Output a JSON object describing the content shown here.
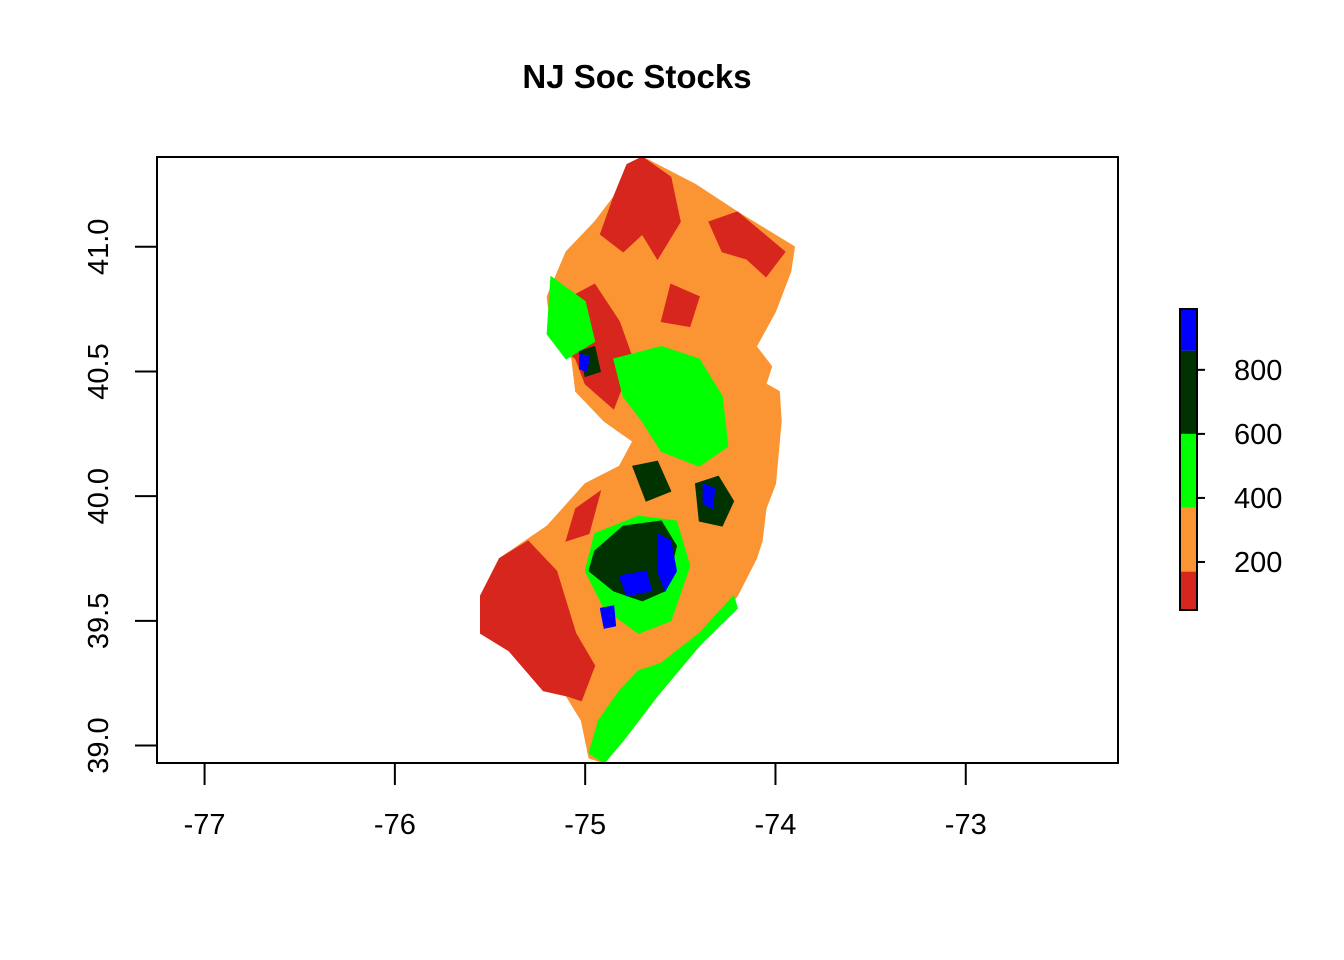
{
  "title": "NJ Soc Stocks",
  "chart_data": {
    "type": "heatmap",
    "title": "NJ Soc Stocks",
    "xlabel": "",
    "ylabel": "",
    "xlim": [
      -77.25,
      -72.2
    ],
    "ylim": [
      38.93,
      41.36
    ],
    "x_ticks": [
      "-77",
      "-76",
      "-75",
      "-74",
      "-73"
    ],
    "y_ticks": [
      "39.0",
      "39.5",
      "40.0",
      "40.5",
      "41.0"
    ],
    "legend": {
      "placement": "right",
      "range": [
        50,
        990
      ],
      "ticks": [
        "200",
        "400",
        "600",
        "800"
      ],
      "bins": [
        {
          "from": 50,
          "to": 170,
          "color": "#d7261e"
        },
        {
          "from": 170,
          "to": 370,
          "color": "#fb9433"
        },
        {
          "from": 370,
          "to": 600,
          "color": "#00ff00"
        },
        {
          "from": 600,
          "to": 860,
          "color": "#003300"
        },
        {
          "from": 860,
          "to": 990,
          "color": "#0000ff"
        }
      ]
    },
    "region_outline": [
      [
        -74.7,
        41.36
      ],
      [
        -74.42,
        41.25
      ],
      [
        -74.2,
        41.14
      ],
      [
        -73.9,
        41.0
      ],
      [
        -73.92,
        40.9
      ],
      [
        -74.0,
        40.74
      ],
      [
        -74.1,
        40.6
      ],
      [
        -74.02,
        40.52
      ],
      [
        -74.05,
        40.45
      ],
      [
        -73.98,
        40.42
      ],
      [
        -73.97,
        40.3
      ],
      [
        -74.0,
        40.05
      ],
      [
        -74.05,
        39.95
      ],
      [
        -74.07,
        39.82
      ],
      [
        -74.1,
        39.75
      ],
      [
        -74.2,
        39.6
      ],
      [
        -74.4,
        39.4
      ],
      [
        -74.62,
        39.2
      ],
      [
        -74.8,
        39.02
      ],
      [
        -74.9,
        38.93
      ],
      [
        -74.98,
        38.95
      ],
      [
        -75.02,
        39.1
      ],
      [
        -75.1,
        39.2
      ],
      [
        -75.22,
        39.22
      ],
      [
        -75.4,
        39.38
      ],
      [
        -75.55,
        39.45
      ],
      [
        -75.55,
        39.6
      ],
      [
        -75.45,
        39.75
      ],
      [
        -75.2,
        39.88
      ],
      [
        -75.0,
        40.05
      ],
      [
        -74.82,
        40.12
      ],
      [
        -74.75,
        40.22
      ],
      [
        -74.9,
        40.3
      ],
      [
        -75.05,
        40.42
      ],
      [
        -75.07,
        40.55
      ],
      [
        -75.18,
        40.68
      ],
      [
        -75.2,
        40.8
      ],
      [
        -75.1,
        40.98
      ],
      [
        -74.95,
        41.1
      ],
      [
        -74.85,
        41.2
      ],
      [
        -74.78,
        41.33
      ]
    ],
    "regions": [
      {
        "class": "200",
        "color": "#fb9433",
        "points": [
          [
            -74.7,
            41.36
          ],
          [
            -74.42,
            41.25
          ],
          [
            -74.2,
            41.14
          ],
          [
            -73.9,
            41.0
          ],
          [
            -73.92,
            40.9
          ],
          [
            -74.0,
            40.74
          ],
          [
            -74.1,
            40.6
          ],
          [
            -74.02,
            40.52
          ],
          [
            -74.05,
            40.45
          ],
          [
            -73.98,
            40.42
          ],
          [
            -73.97,
            40.3
          ],
          [
            -74.0,
            40.05
          ],
          [
            -74.05,
            39.95
          ],
          [
            -74.07,
            39.82
          ],
          [
            -74.1,
            39.75
          ],
          [
            -74.2,
            39.6
          ],
          [
            -74.4,
            39.4
          ],
          [
            -74.62,
            39.2
          ],
          [
            -74.8,
            39.02
          ],
          [
            -74.9,
            38.93
          ],
          [
            -74.98,
            38.95
          ],
          [
            -75.02,
            39.1
          ],
          [
            -75.1,
            39.2
          ],
          [
            -75.22,
            39.22
          ],
          [
            -75.4,
            39.38
          ],
          [
            -75.55,
            39.45
          ],
          [
            -75.55,
            39.6
          ],
          [
            -75.45,
            39.75
          ],
          [
            -75.2,
            39.88
          ],
          [
            -75.0,
            40.05
          ],
          [
            -74.82,
            40.12
          ],
          [
            -74.75,
            40.22
          ],
          [
            -74.9,
            40.3
          ],
          [
            -75.05,
            40.42
          ],
          [
            -75.07,
            40.55
          ],
          [
            -75.18,
            40.68
          ],
          [
            -75.2,
            40.8
          ],
          [
            -75.1,
            40.98
          ],
          [
            -74.95,
            41.1
          ],
          [
            -74.85,
            41.2
          ],
          [
            -74.78,
            41.33
          ]
        ]
      },
      {
        "class": "100",
        "color": "#d7261e",
        "points": [
          [
            -75.55,
            39.45
          ],
          [
            -75.55,
            39.6
          ],
          [
            -75.45,
            39.75
          ],
          [
            -75.3,
            39.82
          ],
          [
            -75.15,
            39.7
          ],
          [
            -75.05,
            39.45
          ],
          [
            -74.95,
            39.32
          ],
          [
            -75.02,
            39.18
          ],
          [
            -75.1,
            39.2
          ],
          [
            -75.22,
            39.22
          ],
          [
            -75.4,
            39.38
          ]
        ]
      },
      {
        "class": "100",
        "color": "#d7261e",
        "points": [
          [
            -74.7,
            41.36
          ],
          [
            -74.55,
            41.28
          ],
          [
            -74.5,
            41.1
          ],
          [
            -74.62,
            40.95
          ],
          [
            -74.7,
            41.05
          ],
          [
            -74.8,
            40.98
          ],
          [
            -74.92,
            41.05
          ],
          [
            -74.85,
            41.2
          ],
          [
            -74.78,
            41.33
          ]
        ]
      },
      {
        "class": "100",
        "color": "#d7261e",
        "points": [
          [
            -74.35,
            41.1
          ],
          [
            -74.2,
            41.14
          ],
          [
            -73.95,
            40.98
          ],
          [
            -74.05,
            40.88
          ],
          [
            -74.15,
            40.95
          ],
          [
            -74.28,
            40.98
          ]
        ]
      },
      {
        "class": "100",
        "color": "#d7261e",
        "points": [
          [
            -75.12,
            40.78
          ],
          [
            -74.95,
            40.85
          ],
          [
            -74.82,
            40.7
          ],
          [
            -74.75,
            40.55
          ],
          [
            -74.85,
            40.35
          ],
          [
            -75.0,
            40.45
          ],
          [
            -75.05,
            40.55
          ],
          [
            -75.15,
            40.62
          ],
          [
            -75.18,
            40.72
          ]
        ]
      },
      {
        "class": "100",
        "color": "#d7261e",
        "points": [
          [
            -74.55,
            40.85
          ],
          [
            -74.4,
            40.8
          ],
          [
            -74.45,
            40.68
          ],
          [
            -74.6,
            40.7
          ]
        ]
      },
      {
        "class": "100",
        "color": "#d7261e",
        "points": [
          [
            -75.05,
            39.95
          ],
          [
            -74.92,
            40.02
          ],
          [
            -74.98,
            39.85
          ],
          [
            -75.1,
            39.82
          ]
        ]
      },
      {
        "class": "500",
        "color": "#00ff00",
        "points": [
          [
            -74.72,
            39.3
          ],
          [
            -74.6,
            39.33
          ],
          [
            -74.4,
            39.45
          ],
          [
            -74.22,
            39.6
          ],
          [
            -74.2,
            39.55
          ],
          [
            -74.4,
            39.4
          ],
          [
            -74.62,
            39.2
          ],
          [
            -74.8,
            39.02
          ],
          [
            -74.9,
            38.93
          ],
          [
            -74.98,
            38.97
          ],
          [
            -74.93,
            39.1
          ],
          [
            -74.82,
            39.22
          ]
        ]
      },
      {
        "class": "500",
        "color": "#00ff00",
        "points": [
          [
            -74.85,
            40.55
          ],
          [
            -74.6,
            40.6
          ],
          [
            -74.4,
            40.55
          ],
          [
            -74.28,
            40.4
          ],
          [
            -74.25,
            40.2
          ],
          [
            -74.4,
            40.12
          ],
          [
            -74.6,
            40.18
          ],
          [
            -74.7,
            40.3
          ],
          [
            -74.8,
            40.4
          ]
        ]
      },
      {
        "class": "500",
        "color": "#00ff00",
        "points": [
          [
            -75.18,
            40.88
          ],
          [
            -75.0,
            40.78
          ],
          [
            -74.95,
            40.62
          ],
          [
            -75.1,
            40.55
          ],
          [
            -75.2,
            40.65
          ]
        ]
      },
      {
        "class": "500",
        "color": "#00ff00",
        "points": [
          [
            -74.95,
            39.85
          ],
          [
            -74.72,
            39.92
          ],
          [
            -74.52,
            39.9
          ],
          [
            -74.45,
            39.72
          ],
          [
            -74.55,
            39.5
          ],
          [
            -74.72,
            39.45
          ],
          [
            -74.9,
            39.55
          ],
          [
            -75.0,
            39.7
          ]
        ]
      },
      {
        "class": "700",
        "color": "#003300",
        "points": [
          [
            -74.95,
            39.78
          ],
          [
            -74.8,
            39.88
          ],
          [
            -74.6,
            39.9
          ],
          [
            -74.52,
            39.8
          ],
          [
            -74.58,
            39.62
          ],
          [
            -74.7,
            39.58
          ],
          [
            -74.85,
            39.62
          ],
          [
            -74.98,
            39.7
          ]
        ]
      },
      {
        "class": "700",
        "color": "#003300",
        "points": [
          [
            -74.42,
            40.05
          ],
          [
            -74.3,
            40.08
          ],
          [
            -74.22,
            39.98
          ],
          [
            -74.28,
            39.88
          ],
          [
            -74.4,
            39.9
          ]
        ]
      },
      {
        "class": "700",
        "color": "#003300",
        "points": [
          [
            -74.75,
            40.12
          ],
          [
            -74.62,
            40.14
          ],
          [
            -74.55,
            40.02
          ],
          [
            -74.68,
            39.98
          ]
        ]
      },
      {
        "class": "700",
        "color": "#003300",
        "points": [
          [
            -75.03,
            40.58
          ],
          [
            -74.95,
            40.6
          ],
          [
            -74.92,
            40.5
          ],
          [
            -75.0,
            40.48
          ]
        ]
      },
      {
        "class": "900",
        "color": "#0000ff",
        "points": [
          [
            -74.62,
            39.85
          ],
          [
            -74.55,
            39.82
          ],
          [
            -74.52,
            39.7
          ],
          [
            -74.58,
            39.62
          ],
          [
            -74.62,
            39.7
          ]
        ]
      },
      {
        "class": "900",
        "color": "#0000ff",
        "points": [
          [
            -74.82,
            39.68
          ],
          [
            -74.68,
            39.7
          ],
          [
            -74.65,
            39.62
          ],
          [
            -74.78,
            39.6
          ]
        ]
      },
      {
        "class": "900",
        "color": "#0000ff",
        "points": [
          [
            -74.92,
            39.55
          ],
          [
            -74.85,
            39.56
          ],
          [
            -74.84,
            39.48
          ],
          [
            -74.9,
            39.47
          ]
        ]
      },
      {
        "class": "900",
        "color": "#0000ff",
        "points": [
          [
            -74.38,
            40.05
          ],
          [
            -74.32,
            40.03
          ],
          [
            -74.33,
            39.95
          ],
          [
            -74.38,
            39.97
          ]
        ]
      },
      {
        "class": "900",
        "color": "#0000ff",
        "points": [
          [
            -75.03,
            40.57
          ],
          [
            -74.98,
            40.56
          ],
          [
            -74.99,
            40.5
          ],
          [
            -75.03,
            40.51
          ]
        ]
      }
    ]
  }
}
